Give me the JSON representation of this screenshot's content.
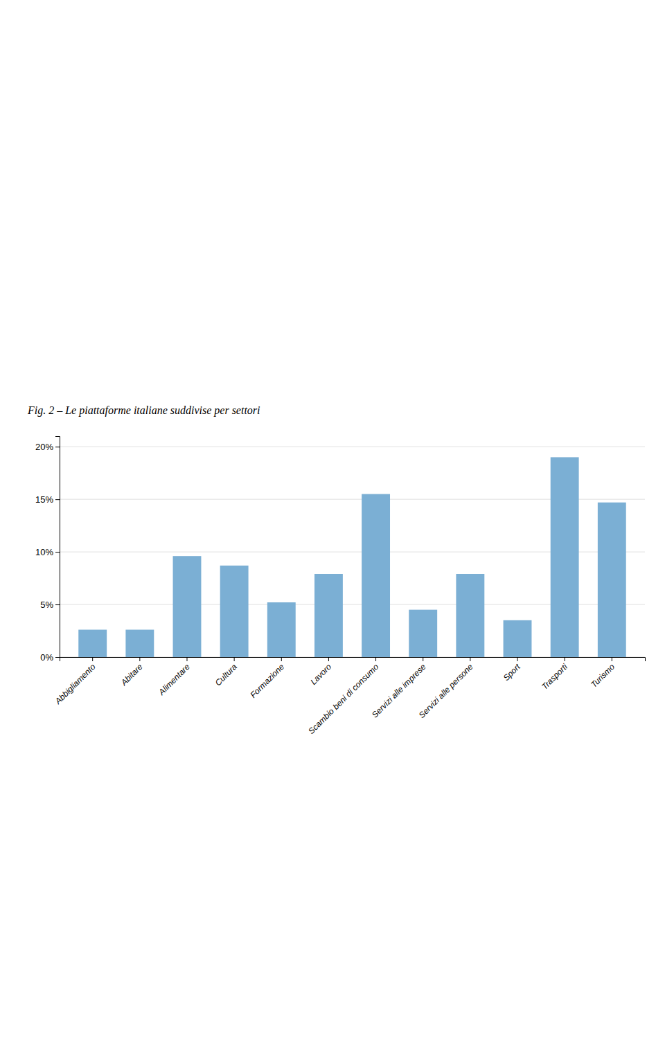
{
  "chart_data": {
    "type": "bar",
    "title": "Fig. 2 – Le piattaforme italiane suddivise per settori",
    "categories": [
      "Abbigliamento",
      "Abitare",
      "Alimentare",
      "Cultura",
      "Formazione",
      "Lavoro",
      "Scambio beni di consumo",
      "Servizi alle imprese",
      "Servizi alle persone",
      "Sport",
      "Trasporti",
      "Turismo"
    ],
    "values": [
      0.026,
      0.026,
      0.096,
      0.087,
      0.052,
      0.079,
      0.155,
      0.045,
      0.079,
      0.035,
      0.19,
      0.147
    ],
    "color": "#7bafd4",
    "ylim": [
      0,
      0.21
    ],
    "yticks": [
      {
        "value": 0.0,
        "label": "0%"
      },
      {
        "value": 0.05,
        "label": "5%"
      },
      {
        "value": 0.1,
        "label": "10%"
      },
      {
        "value": 0.15,
        "label": "15%"
      },
      {
        "value": 0.2,
        "label": "20%"
      }
    ],
    "grid": true
  }
}
